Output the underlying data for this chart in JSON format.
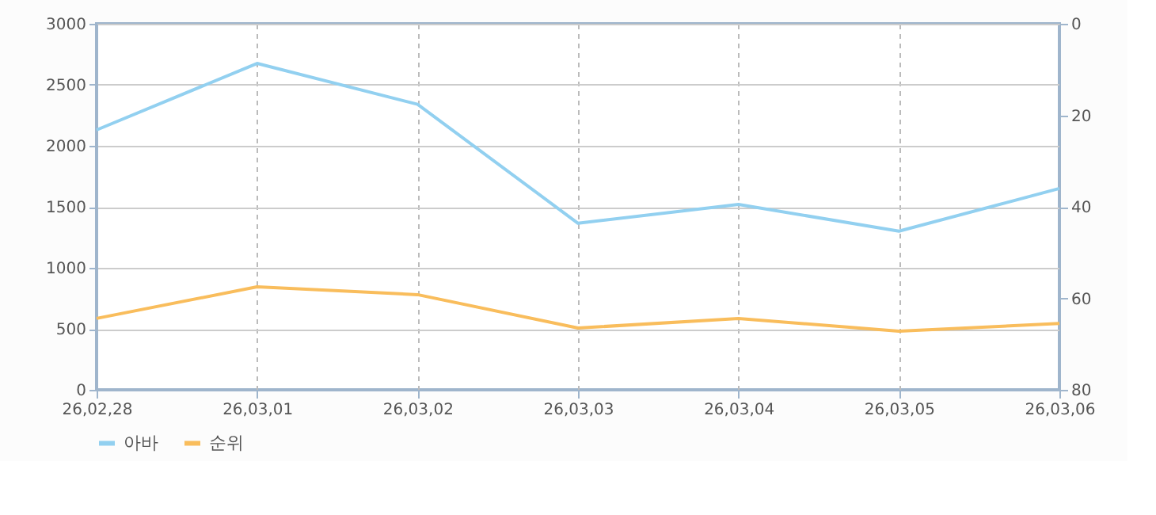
{
  "chart_data": {
    "type": "line",
    "categories": [
      "26,02,28",
      "26,03,01",
      "26,03,02",
      "26,03,03",
      "26,03,04",
      "26,03,05",
      "26,03,06"
    ],
    "series": [
      {
        "name": "아바",
        "color": "#92d0f0",
        "values": [
          2130,
          2675,
          2340,
          1365,
          1520,
          1300,
          1650
        ]
      },
      {
        "name": "순위",
        "color": "#f9bd5c",
        "axis": "y2",
        "values": [
          64.4,
          57.5,
          59.2,
          66.5,
          64.4,
          67.2,
          65.5
        ]
      }
    ],
    "ylim": [
      0,
      3000
    ],
    "yticks": [
      0,
      500,
      1000,
      1500,
      2000,
      2500,
      3000
    ],
    "y2lim": [
      80,
      0
    ],
    "y2ticks": [
      0,
      20,
      40,
      60,
      80
    ],
    "grid": true,
    "legend": "bottom left",
    "marker": "none",
    "line_style": "solid"
  }
}
